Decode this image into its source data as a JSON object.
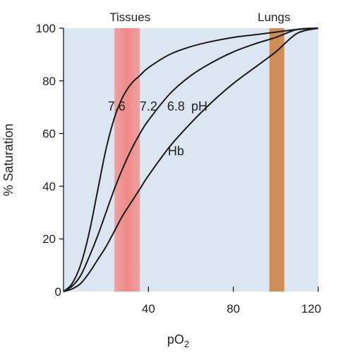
{
  "chart_data": {
    "type": "line",
    "xlabel": "pO",
    "xlabel_subscript": "2",
    "ylabel": "% Saturation",
    "xlim": [
      0,
      120
    ],
    "ylim": [
      0,
      100
    ],
    "x_ticks": [
      40,
      80,
      120
    ],
    "y_ticks": [
      0,
      20,
      40,
      60,
      80,
      100
    ],
    "grid": false,
    "colors": {
      "plot_background": "#dbe6f2",
      "curve": "#1a1a1a",
      "tissues_band": "#f08a86",
      "lungs_band": "#cf8d58"
    },
    "bands": [
      {
        "label": "Tissues",
        "x_start": 24,
        "x_end": 36
      },
      {
        "label": "Lungs",
        "x_start": 97,
        "x_end": 104
      }
    ],
    "series": [
      {
        "name": "7.6",
        "x": [
          0,
          4,
          8,
          12,
          16,
          20,
          24,
          28,
          32,
          36,
          40,
          50,
          60,
          70,
          80,
          90,
          100,
          110,
          120
        ],
        "y": [
          0,
          3,
          10,
          22,
          38,
          54,
          66,
          74,
          79,
          82,
          85,
          90,
          93,
          95,
          96.5,
          97.5,
          98.5,
          99.5,
          100
        ]
      },
      {
        "name": "7.2",
        "x": [
          0,
          4,
          8,
          12,
          16,
          20,
          24,
          28,
          32,
          36,
          40,
          50,
          60,
          70,
          80,
          90,
          100,
          110,
          120
        ],
        "y": [
          0,
          2,
          6,
          13,
          21,
          30,
          39,
          47,
          54,
          60,
          65,
          75,
          82,
          87,
          91,
          94,
          96.5,
          99.5,
          100
        ]
      },
      {
        "name": "6.8",
        "x": [
          0,
          4,
          8,
          12,
          16,
          20,
          24,
          28,
          32,
          36,
          40,
          50,
          60,
          70,
          80,
          90,
          100,
          110,
          120
        ],
        "y": [
          0,
          1,
          3,
          7,
          12,
          17,
          23,
          29,
          34,
          39,
          44,
          55,
          64,
          72,
          79,
          85,
          91,
          98,
          100
        ]
      }
    ],
    "annotations": [
      {
        "text": "7.6",
        "x": 25,
        "y": 70
      },
      {
        "text": "7.2",
        "x": 40,
        "y": 70
      },
      {
        "text": "6.8",
        "x": 53,
        "y": 70
      },
      {
        "text": "pH",
        "x": 64,
        "y": 70
      },
      {
        "text": "Hb",
        "x": 53,
        "y": 53
      }
    ]
  }
}
